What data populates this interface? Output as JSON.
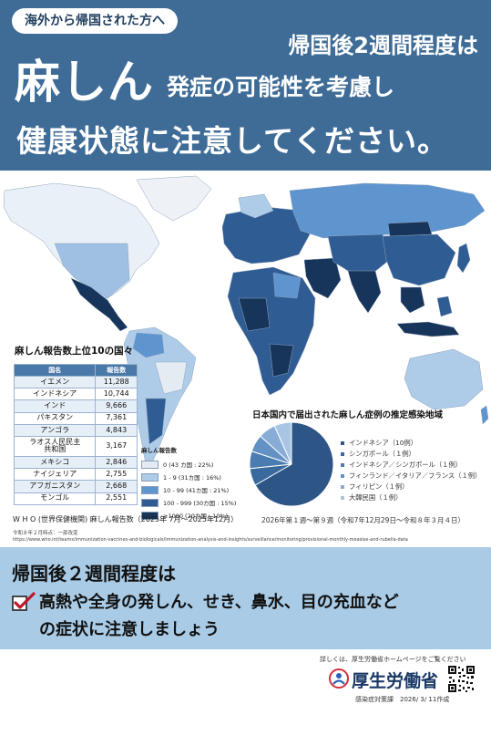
{
  "header": {
    "pill": "海外から帰国された方へ",
    "line1": "帰国後2週間程度は",
    "big": "麻しん",
    "line2": "発症の可能性を考慮し",
    "line3": "健康状態に注意してください。"
  },
  "top10": {
    "title": "麻しん報告数上位10の国々",
    "col_country": "国名",
    "col_count": "報告数",
    "rows": [
      {
        "country": "イエメン",
        "count": "11,288"
      },
      {
        "country": "インドネシア",
        "count": "10,744"
      },
      {
        "country": "インド",
        "count": "9,666"
      },
      {
        "country": "パキスタン",
        "count": "7,361"
      },
      {
        "country": "アンゴラ",
        "count": "4,843"
      },
      {
        "country": "ラオス人民民主\n共和国",
        "count": "3,167"
      },
      {
        "country": "メキシコ",
        "count": "2,846"
      },
      {
        "country": "ナイジェリア",
        "count": "2,755"
      },
      {
        "country": "アフガニスタン",
        "count": "2,668"
      },
      {
        "country": "モンゴル",
        "count": "2,551"
      }
    ]
  },
  "map_legend": {
    "title": "麻しん報告数",
    "items": [
      {
        "label": "0 (43 カ国 : 22%)",
        "color": "#e4ebf3"
      },
      {
        "label": "1 - 9 (31カ国 : 16%)",
        "color": "#aecbe8"
      },
      {
        "label": "10 - 99 (41カ国 : 21%)",
        "color": "#5f95cf"
      },
      {
        "label": "100 - 999 (30カ国 : 15%)",
        "color": "#2f5c93"
      },
      {
        "label": "≥1000 (20カ国 : 10%)",
        "color": "#17345a"
      }
    ]
  },
  "source": {
    "line1": "W H O (世界保健機関)  麻しん報告数（2025年 7月～2025年12月）",
    "line2": "令和８年２月時点：一部改変",
    "line3": "https://www.who.int/teams/immunization-vaccines-and-biologicals/immunization-analysis-and-insights/surveillance/monitoring/provisional-monthly-measles-and-rubella-data"
  },
  "pie": {
    "title": "日本国内で届出された麻しん症例の推定感染地域",
    "caption": "2026年第１週～第９週（令和7年12月29日～令和８年３月４日）"
  },
  "chart_data": {
    "type": "pie",
    "title": "日本国内で届出された麻しん症例の推定感染地域",
    "labels": [
      "インドネシア（10例）",
      "シンガポール（１例）",
      "インドネシア／シンガポール（１例）",
      "フィンランド／イタリア／フランス（１例）",
      "フィリピン（１例）",
      "大韓民国（１例）"
    ],
    "values": [
      10,
      1,
      1,
      1,
      1,
      1
    ],
    "colors": [
      "#2d5585",
      "#3a6a9d",
      "#4b7cb1",
      "#6391c4",
      "#87acd6",
      "#a9c5e4"
    ],
    "legend": "right"
  },
  "band": {
    "title": "帰国後２週間程度は",
    "line1": "高熱や全身の発しん、せき、鼻水、目の充血など",
    "line2": "の症状に注意しましょう"
  },
  "footer": {
    "note": "詳しくは、厚生労働省ホームページをご覧ください",
    "ministry": "厚生労働省",
    "dept": "感染症対策課　2026/ 3/ 11作成"
  }
}
